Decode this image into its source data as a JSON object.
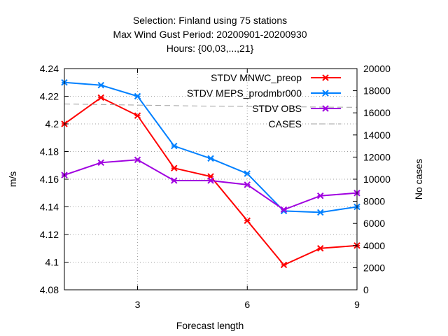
{
  "chart_data": {
    "type": "line",
    "title_lines": [
      "Selection: Finland using    75 stations",
      "Max Wind Gust   Period: 20200901-20200930",
      "Hours: {00,03,...,21}"
    ],
    "xlabel": "Forecast length",
    "ylabel": "m/s",
    "y2label": "No cases",
    "xlim": [
      1,
      9
    ],
    "ylim": [
      4.08,
      4.24
    ],
    "y2lim": [
      0,
      20000
    ],
    "xticks": [
      3,
      6,
      9
    ],
    "yticks": [
      "4.08",
      "4.1",
      "4.12",
      "4.14",
      "4.16",
      "4.18",
      "4.2",
      "4.22",
      "4.24"
    ],
    "y2ticks": [
      "0",
      "2000",
      "4000",
      "6000",
      "8000",
      "10000",
      "12000",
      "14000",
      "16000",
      "18000",
      "20000"
    ],
    "grid": true,
    "legend_position": "top-right",
    "x": [
      1,
      2,
      3,
      4,
      5,
      6,
      7,
      8,
      9
    ],
    "series": [
      {
        "name": "STDV MNWC_preop",
        "color": "#ff0000",
        "marker": "x",
        "axis": "y1",
        "values": [
          4.2,
          4.219,
          4.206,
          4.168,
          4.162,
          4.13,
          4.098,
          4.11,
          4.112
        ]
      },
      {
        "name": "STDV MEPS_prodmbr000",
        "color": "#0080ff",
        "marker": "x",
        "axis": "y1",
        "values": [
          4.23,
          4.228,
          4.22,
          4.184,
          4.175,
          4.164,
          4.137,
          4.136,
          4.14
        ]
      },
      {
        "name": "STDV OBS",
        "color": "#a000e0",
        "marker": "x",
        "axis": "y1",
        "values": [
          4.163,
          4.172,
          4.174,
          4.159,
          4.159,
          4.156,
          4.138,
          4.148,
          4.15
        ]
      },
      {
        "name": "CASES",
        "color": "#a0a0a0",
        "marker": "none",
        "dashed": true,
        "axis": "y2",
        "values": [
          16800,
          16750,
          16700,
          16650,
          16600,
          16580,
          16550,
          16520,
          16500
        ]
      }
    ]
  }
}
